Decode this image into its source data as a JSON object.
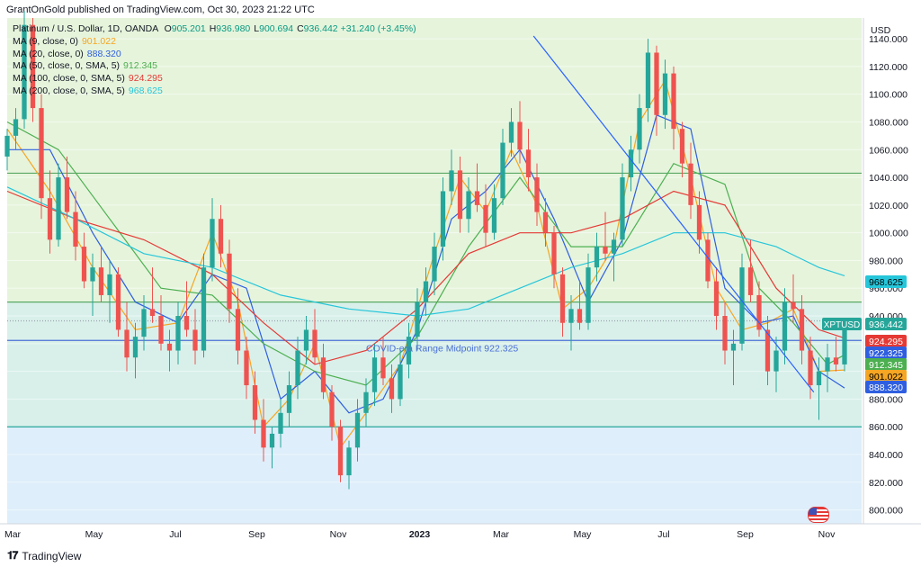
{
  "header": {
    "publisher": "GrantOnGold published on TradingView.com, Oct 30, 2023 21:22 UTC"
  },
  "legend": {
    "instrument": "Platinum / U.S. Dollar, 1D, OANDA",
    "ohlc": [
      {
        "k": "O",
        "v": "905.201"
      },
      {
        "k": "H",
        "v": "936.980"
      },
      {
        "k": "L",
        "v": "900.694"
      },
      {
        "k": "C",
        "v": "936.442"
      }
    ],
    "change": "+31.240 (+3.45%)",
    "mas": [
      {
        "label": "MA (9, close, 0)",
        "value": "901.022",
        "color": "#f5a623"
      },
      {
        "label": "MA (20, close, 0)",
        "value": "888.320",
        "color": "#2f5fe0"
      },
      {
        "label": "MA (50, close, 0, SMA, 5)",
        "value": "912.345",
        "color": "#4caf50"
      },
      {
        "label": "MA (100, close, 0, SMA, 5)",
        "value": "924.295",
        "color": "#e53935"
      },
      {
        "label": "MA (200, close, 0, SMA, 5)",
        "value": "968.625",
        "color": "#26c6da"
      }
    ]
  },
  "footer": {
    "brand": "TradingView"
  },
  "chart_data": {
    "type": "candlestick",
    "symbol": "XPTUSD",
    "currency": "USD",
    "ylim": [
      790,
      1155
    ],
    "y_ticks": [
      800,
      820,
      840,
      860,
      880,
      900,
      920,
      940,
      960,
      980,
      1000,
      1020,
      1040,
      1060,
      1080,
      1100,
      1120,
      1140
    ],
    "x_ticks": [
      "Mar",
      "May",
      "Jul",
      "Sep",
      "Nov",
      "2023",
      "Mar",
      "May",
      "Jul",
      "Sep",
      "Nov"
    ],
    "annotation": "COVID-era Range Midpoint 922.325",
    "zones": [
      {
        "from": 1043,
        "to": 1155,
        "color": "#e6f4dc"
      },
      {
        "from": 950,
        "to": 1043,
        "color": "#e6f4dc"
      },
      {
        "from": 860,
        "to": 950,
        "color": "#d9f0ea"
      },
      {
        "from": 790,
        "to": 860,
        "color": "#deeefa"
      }
    ],
    "hlines": [
      {
        "y": 1043,
        "color": "#5aa864"
      },
      {
        "y": 950,
        "color": "#5aa864"
      },
      {
        "y": 922.325,
        "color": "#4a6fd6"
      },
      {
        "y": 860,
        "color": "#26a69a"
      },
      {
        "y": 936.442,
        "color": "#9aa3ad",
        "dotted": true
      }
    ],
    "trendline": {
      "from": [
        0.616,
        1142
      ],
      "to": [
        0.944,
        885
      ],
      "color": "#2962ff"
    },
    "candles": [
      [
        0.0,
        1055,
        1075,
        1045,
        1070
      ],
      [
        0.01,
        1070,
        1090,
        1060,
        1082
      ],
      [
        0.02,
        1082,
        1160,
        1075,
        1150
      ],
      [
        0.03,
        1150,
        1155,
        1080,
        1090
      ],
      [
        0.04,
        1090,
        1100,
        1010,
        1025
      ],
      [
        0.05,
        1025,
        1045,
        985,
        995
      ],
      [
        0.06,
        995,
        1050,
        990,
        1040
      ],
      [
        0.07,
        1040,
        1055,
        1010,
        1015
      ],
      [
        0.08,
        1015,
        1030,
        980,
        990
      ],
      [
        0.09,
        990,
        1000,
        960,
        965
      ],
      [
        0.1,
        965,
        985,
        940,
        975
      ],
      [
        0.11,
        975,
        990,
        950,
        955
      ],
      [
        0.12,
        955,
        980,
        935,
        970
      ],
      [
        0.13,
        970,
        975,
        925,
        930
      ],
      [
        0.14,
        930,
        950,
        900,
        910
      ],
      [
        0.15,
        910,
        935,
        895,
        925
      ],
      [
        0.16,
        925,
        955,
        915,
        945
      ],
      [
        0.17,
        945,
        975,
        935,
        940
      ],
      [
        0.18,
        940,
        955,
        915,
        920
      ],
      [
        0.19,
        920,
        930,
        900,
        915
      ],
      [
        0.2,
        915,
        950,
        905,
        940
      ],
      [
        0.21,
        940,
        965,
        925,
        930
      ],
      [
        0.22,
        930,
        945,
        905,
        915
      ],
      [
        0.23,
        915,
        985,
        910,
        975
      ],
      [
        0.24,
        975,
        1025,
        965,
        1010
      ],
      [
        0.25,
        1010,
        1020,
        975,
        985
      ],
      [
        0.26,
        985,
        995,
        935,
        945
      ],
      [
        0.27,
        945,
        960,
        905,
        915
      ],
      [
        0.28,
        915,
        925,
        880,
        890
      ],
      [
        0.29,
        890,
        900,
        855,
        865
      ],
      [
        0.3,
        865,
        880,
        835,
        845
      ],
      [
        0.31,
        845,
        860,
        830,
        855
      ],
      [
        0.32,
        855,
        880,
        845,
        870
      ],
      [
        0.33,
        870,
        900,
        860,
        890
      ],
      [
        0.34,
        890,
        925,
        880,
        915
      ],
      [
        0.35,
        915,
        940,
        905,
        930
      ],
      [
        0.36,
        930,
        945,
        905,
        910
      ],
      [
        0.37,
        910,
        920,
        880,
        885
      ],
      [
        0.38,
        885,
        890,
        850,
        860
      ],
      [
        0.39,
        860,
        865,
        820,
        825
      ],
      [
        0.4,
        825,
        850,
        815,
        845
      ],
      [
        0.41,
        845,
        880,
        835,
        870
      ],
      [
        0.42,
        870,
        895,
        860,
        885
      ],
      [
        0.43,
        885,
        920,
        875,
        910
      ],
      [
        0.44,
        910,
        925,
        890,
        895
      ],
      [
        0.45,
        895,
        905,
        870,
        880
      ],
      [
        0.46,
        880,
        915,
        875,
        905
      ],
      [
        0.47,
        905,
        935,
        895,
        925
      ],
      [
        0.48,
        925,
        960,
        915,
        950
      ],
      [
        0.49,
        950,
        975,
        940,
        965
      ],
      [
        0.5,
        965,
        1000,
        955,
        990
      ],
      [
        0.51,
        990,
        1040,
        980,
        1030
      ],
      [
        0.52,
        1030,
        1060,
        1020,
        1045
      ],
      [
        0.53,
        1045,
        1055,
        1000,
        1010
      ],
      [
        0.54,
        1010,
        1040,
        1000,
        1030
      ],
      [
        0.55,
        1030,
        1050,
        1015,
        1020
      ],
      [
        0.56,
        1020,
        1035,
        990,
        1000
      ],
      [
        0.57,
        1000,
        1035,
        995,
        1025
      ],
      [
        0.58,
        1025,
        1075,
        1020,
        1065
      ],
      [
        0.59,
        1065,
        1090,
        1055,
        1080
      ],
      [
        0.6,
        1080,
        1095,
        1050,
        1060
      ],
      [
        0.61,
        1060,
        1075,
        1030,
        1040
      ],
      [
        0.62,
        1040,
        1050,
        1005,
        1015
      ],
      [
        0.63,
        1015,
        1025,
        990,
        1000
      ],
      [
        0.64,
        1000,
        1005,
        960,
        970
      ],
      [
        0.65,
        970,
        975,
        925,
        935
      ],
      [
        0.66,
        935,
        955,
        915,
        945
      ],
      [
        0.67,
        945,
        965,
        930,
        935
      ],
      [
        0.68,
        935,
        985,
        930,
        975
      ],
      [
        0.69,
        975,
        1000,
        965,
        990
      ],
      [
        0.7,
        990,
        1015,
        980,
        985
      ],
      [
        0.71,
        985,
        1000,
        965,
        995
      ],
      [
        0.72,
        995,
        1050,
        990,
        1040
      ],
      [
        0.73,
        1040,
        1070,
        1030,
        1060
      ],
      [
        0.74,
        1060,
        1100,
        1050,
        1090
      ],
      [
        0.75,
        1090,
        1140,
        1080,
        1130
      ],
      [
        0.76,
        1130,
        1135,
        1070,
        1085
      ],
      [
        0.77,
        1085,
        1125,
        1075,
        1115
      ],
      [
        0.78,
        1115,
        1120,
        1060,
        1075
      ],
      [
        0.79,
        1075,
        1080,
        1040,
        1050
      ],
      [
        0.8,
        1050,
        1065,
        1010,
        1020
      ],
      [
        0.81,
        1020,
        1030,
        985,
        995
      ],
      [
        0.82,
        995,
        1000,
        960,
        965
      ],
      [
        0.83,
        965,
        975,
        930,
        940
      ],
      [
        0.84,
        940,
        950,
        905,
        915
      ],
      [
        0.85,
        915,
        930,
        890,
        920
      ],
      [
        0.86,
        920,
        985,
        915,
        975
      ],
      [
        0.87,
        975,
        995,
        950,
        955
      ],
      [
        0.88,
        955,
        965,
        925,
        930
      ],
      [
        0.89,
        930,
        940,
        890,
        900
      ],
      [
        0.9,
        900,
        925,
        885,
        915
      ],
      [
        0.91,
        915,
        960,
        905,
        950
      ],
      [
        0.92,
        950,
        970,
        935,
        945
      ],
      [
        0.93,
        945,
        955,
        905,
        915
      ],
      [
        0.94,
        915,
        925,
        880,
        890
      ],
      [
        0.95,
        890,
        910,
        865,
        900
      ],
      [
        0.96,
        900,
        920,
        885,
        910
      ],
      [
        0.97,
        910,
        925,
        900,
        905
      ],
      [
        0.98,
        905,
        937,
        900,
        936
      ]
    ],
    "moving_averages": [
      {
        "name": "MA (9, close, 0)",
        "color": "#f5a623",
        "points": [
          [
            0.0,
            1075
          ],
          [
            0.05,
            1030
          ],
          [
            0.1,
            975
          ],
          [
            0.15,
            930
          ],
          [
            0.2,
            935
          ],
          [
            0.24,
            1000
          ],
          [
            0.27,
            950
          ],
          [
            0.3,
            860
          ],
          [
            0.33,
            880
          ],
          [
            0.36,
            920
          ],
          [
            0.39,
            845
          ],
          [
            0.42,
            870
          ],
          [
            0.46,
            905
          ],
          [
            0.5,
            985
          ],
          [
            0.53,
            1040
          ],
          [
            0.56,
            1015
          ],
          [
            0.59,
            1060
          ],
          [
            0.62,
            1020
          ],
          [
            0.65,
            945
          ],
          [
            0.68,
            960
          ],
          [
            0.71,
            990
          ],
          [
            0.74,
            1080
          ],
          [
            0.77,
            1110
          ],
          [
            0.8,
            1040
          ],
          [
            0.83,
            960
          ],
          [
            0.86,
            930
          ],
          [
            0.89,
            935
          ],
          [
            0.92,
            945
          ],
          [
            0.95,
            900
          ],
          [
            0.98,
            901
          ]
        ]
      },
      {
        "name": "MA (20, close, 0)",
        "color": "#2f5fe0",
        "points": [
          [
            0.0,
            1060
          ],
          [
            0.05,
            1060
          ],
          [
            0.1,
            1000
          ],
          [
            0.15,
            950
          ],
          [
            0.2,
            935
          ],
          [
            0.24,
            970
          ],
          [
            0.28,
            960
          ],
          [
            0.32,
            880
          ],
          [
            0.36,
            900
          ],
          [
            0.4,
            870
          ],
          [
            0.44,
            880
          ],
          [
            0.48,
            930
          ],
          [
            0.52,
            1010
          ],
          [
            0.56,
            1030
          ],
          [
            0.6,
            1060
          ],
          [
            0.64,
            1010
          ],
          [
            0.68,
            950
          ],
          [
            0.72,
            995
          ],
          [
            0.76,
            1085
          ],
          [
            0.8,
            1075
          ],
          [
            0.84,
            960
          ],
          [
            0.88,
            935
          ],
          [
            0.92,
            940
          ],
          [
            0.95,
            900
          ],
          [
            0.98,
            888
          ]
        ]
      },
      {
        "name": "MA (50, close, 0, SMA, 5)",
        "color": "#4caf50",
        "points": [
          [
            0.0,
            1080
          ],
          [
            0.06,
            1060
          ],
          [
            0.12,
            1010
          ],
          [
            0.18,
            960
          ],
          [
            0.24,
            955
          ],
          [
            0.3,
            920
          ],
          [
            0.36,
            900
          ],
          [
            0.42,
            890
          ],
          [
            0.48,
            925
          ],
          [
            0.54,
            990
          ],
          [
            0.6,
            1040
          ],
          [
            0.66,
            990
          ],
          [
            0.72,
            990
          ],
          [
            0.78,
            1050
          ],
          [
            0.84,
            1035
          ],
          [
            0.88,
            960
          ],
          [
            0.92,
            935
          ],
          [
            0.96,
            905
          ],
          [
            0.98,
            912
          ]
        ]
      },
      {
        "name": "MA (100, close, 0, SMA, 5)",
        "color": "#e53935",
        "points": [
          [
            0.0,
            1030
          ],
          [
            0.08,
            1010
          ],
          [
            0.16,
            995
          ],
          [
            0.24,
            970
          ],
          [
            0.3,
            935
          ],
          [
            0.36,
            905
          ],
          [
            0.42,
            915
          ],
          [
            0.48,
            945
          ],
          [
            0.54,
            985
          ],
          [
            0.6,
            1000
          ],
          [
            0.66,
            1000
          ],
          [
            0.72,
            1010
          ],
          [
            0.78,
            1030
          ],
          [
            0.84,
            1020
          ],
          [
            0.9,
            960
          ],
          [
            0.95,
            930
          ],
          [
            0.98,
            924
          ]
        ]
      },
      {
        "name": "MA (200, close, 0, SMA, 5)",
        "color": "#26c6da",
        "points": [
          [
            0.0,
            1033
          ],
          [
            0.08,
            1010
          ],
          [
            0.16,
            985
          ],
          [
            0.24,
            975
          ],
          [
            0.32,
            955
          ],
          [
            0.4,
            945
          ],
          [
            0.48,
            940
          ],
          [
            0.54,
            945
          ],
          [
            0.6,
            960
          ],
          [
            0.66,
            975
          ],
          [
            0.72,
            985
          ],
          [
            0.78,
            1000
          ],
          [
            0.84,
            1000
          ],
          [
            0.9,
            990
          ],
          [
            0.95,
            975
          ],
          [
            0.98,
            969
          ]
        ]
      }
    ],
    "price_labels": [
      {
        "value": "968.625",
        "y": 968.625,
        "bg": "#26c6da",
        "fg": "#000000"
      },
      {
        "value": "936.442",
        "y": 936.442,
        "bg": "#26a69a",
        "fg": "#ffffff",
        "tag": "XPTUSD"
      },
      {
        "value": "924.295",
        "y": 924.295,
        "bg": "#e53935",
        "fg": "#ffffff"
      },
      {
        "value": "922.325",
        "y": 922.325,
        "bg": "#2f5fe0",
        "fg": "#ffffff"
      },
      {
        "value": "912.345",
        "y": 912.345,
        "bg": "#4caf50",
        "fg": "#ffffff"
      },
      {
        "value": "901.022",
        "y": 901.022,
        "bg": "#f5a623",
        "fg": "#000000"
      },
      {
        "value": "888.320",
        "y": 888.32,
        "bg": "#2f5fe0",
        "fg": "#ffffff"
      }
    ]
  }
}
